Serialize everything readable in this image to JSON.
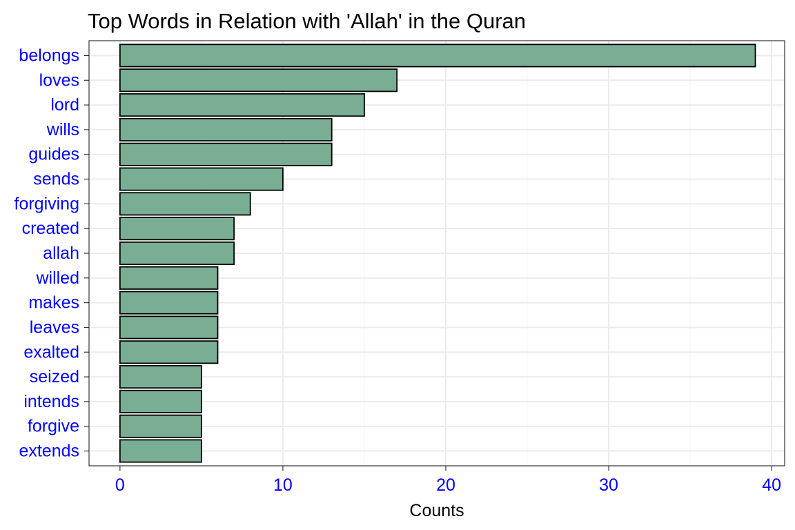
{
  "chart_data": {
    "type": "bar",
    "orientation": "horizontal",
    "title": "Top Words in Relation with 'Allah' in the Quran",
    "xlabel": "Counts",
    "ylabel": "",
    "categories": [
      "belongs",
      "loves",
      "lord",
      "wills",
      "guides",
      "sends",
      "forgiving",
      "created",
      "allah",
      "willed",
      "makes",
      "leaves",
      "exalted",
      "seized",
      "intends",
      "forgive",
      "extends"
    ],
    "values": [
      39,
      17,
      15,
      13,
      13,
      10,
      8,
      7,
      7,
      6,
      6,
      6,
      6,
      5,
      5,
      5,
      5
    ],
    "xlim": [
      -1.9,
      40.8
    ],
    "xticks": [
      0,
      10,
      20,
      30,
      40
    ],
    "xtick_labels": [
      "0",
      "10",
      "20",
      "30",
      "40"
    ],
    "grid": true,
    "legend": "none",
    "colors": {
      "bar_fill": "#79AE94",
      "bar_stroke": "#000000",
      "tick_label": "#0000FF",
      "grid_major": "#EBEBEB",
      "grid_minor": "#F5F5F5",
      "panel_border": "#333333"
    }
  }
}
